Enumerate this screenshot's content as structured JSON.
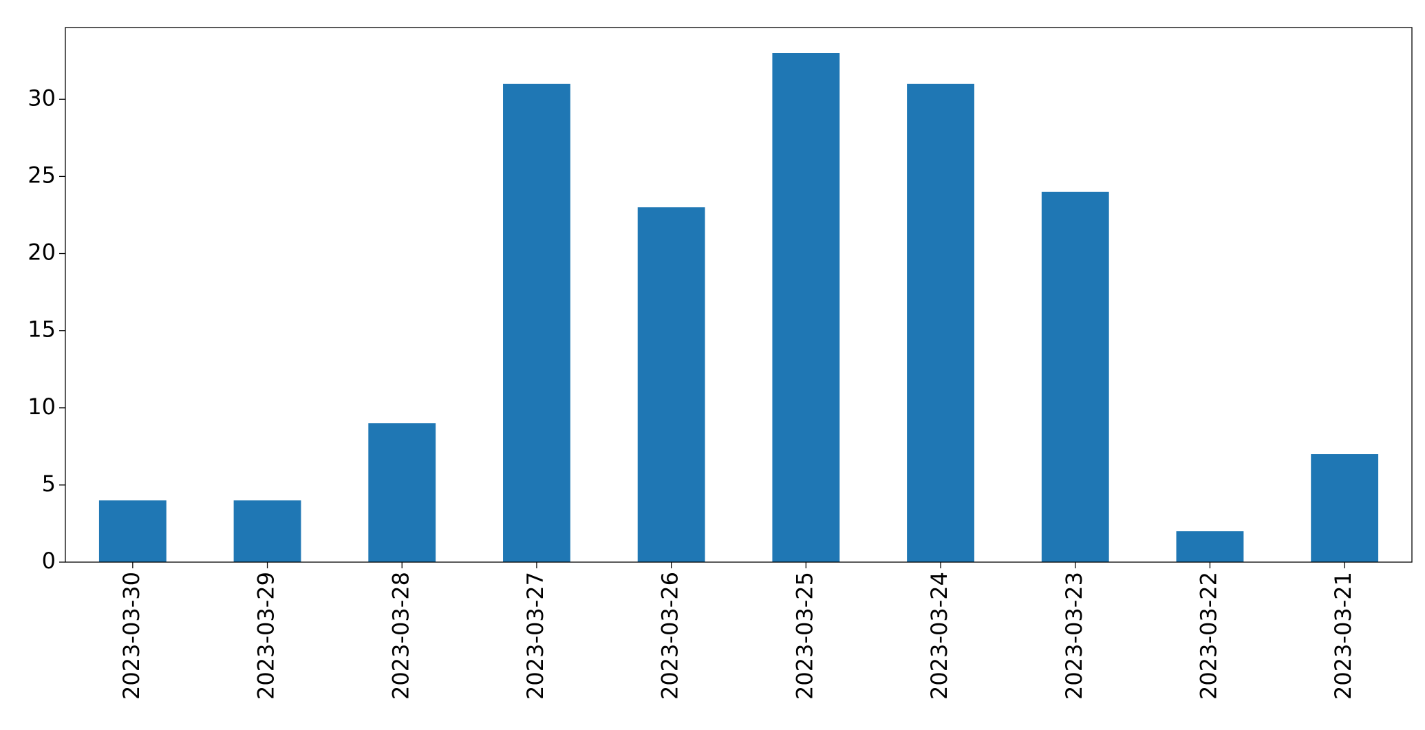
{
  "chart_data": {
    "type": "bar",
    "categories": [
      "2023-03-30",
      "2023-03-29",
      "2023-03-28",
      "2023-03-27",
      "2023-03-26",
      "2023-03-25",
      "2023-03-24",
      "2023-03-23",
      "2023-03-22",
      "2023-03-21"
    ],
    "values": [
      4,
      4,
      9,
      31,
      23,
      33,
      31,
      24,
      2,
      7
    ],
    "color": "#1f77b4",
    "ylim": [
      0,
      34.65
    ],
    "yticks": [
      0,
      5,
      10,
      15,
      20,
      25,
      30
    ],
    "grid": false
  }
}
